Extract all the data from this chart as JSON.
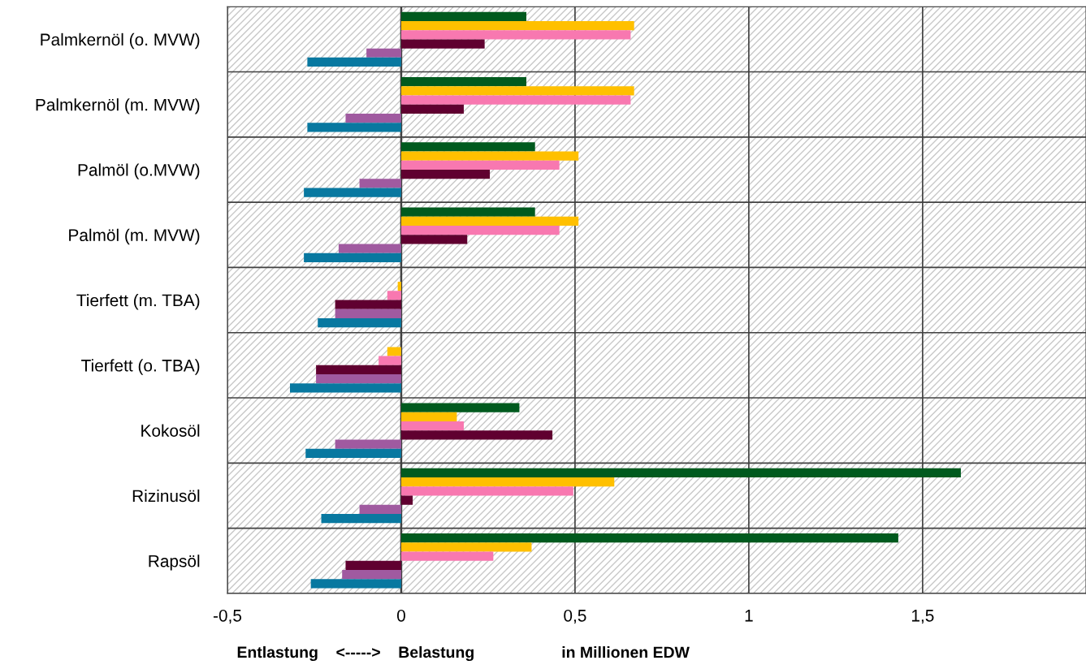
{
  "chart_data": {
    "type": "bar",
    "orientation": "horizontal",
    "categories": [
      "Palmkernöl (o. MVW)",
      "Palmkernöl (m. MVW)",
      "Palmöl (o.MVW)",
      "Palmöl (m. MVW)",
      "Tierfett (m. TBA)",
      "Tierfett (o. TBA)",
      "Kokosöl",
      "Rizinusöl",
      "Rapsöl"
    ],
    "series": [
      {
        "color": "#005a1e",
        "values": [
          0.36,
          0.36,
          0.385,
          0.385,
          0,
          0,
          0.34,
          1.61,
          1.43
        ]
      },
      {
        "color": "#ffc000",
        "values": [
          0.67,
          0.67,
          0.51,
          0.51,
          -0.01,
          -0.04,
          0.16,
          0.613,
          0.375
        ]
      },
      {
        "color": "#f878b0",
        "values": [
          0.66,
          0.66,
          0.455,
          0.455,
          -0.04,
          -0.065,
          0.18,
          0.495,
          0.265
        ]
      },
      {
        "color": "#600030",
        "values": [
          0.24,
          0.18,
          0.255,
          0.19,
          -0.19,
          -0.245,
          0.435,
          0.033,
          -0.16
        ]
      },
      {
        "color": "#a05aa0",
        "values": [
          -0.1,
          -0.16,
          -0.12,
          -0.18,
          -0.19,
          -0.245,
          -0.19,
          -0.12,
          -0.17
        ]
      },
      {
        "color": "#0878a0",
        "values": [
          -0.27,
          -0.27,
          -0.28,
          -0.28,
          -0.24,
          -0.32,
          -0.275,
          -0.23,
          -0.26
        ]
      }
    ],
    "xlim": [
      -0.5,
      1.97
    ],
    "xticks": [
      {
        "value": -0.5,
        "label": "-0,5"
      },
      0,
      {
        "value": 0.5,
        "label": "0,5"
      },
      1,
      {
        "value": 1.5,
        "label": "1,5"
      }
    ],
    "grid": true,
    "legend": false,
    "annotations": [
      "Entlastung    <----->    Belastung",
      "in Millionen EDW"
    ]
  }
}
